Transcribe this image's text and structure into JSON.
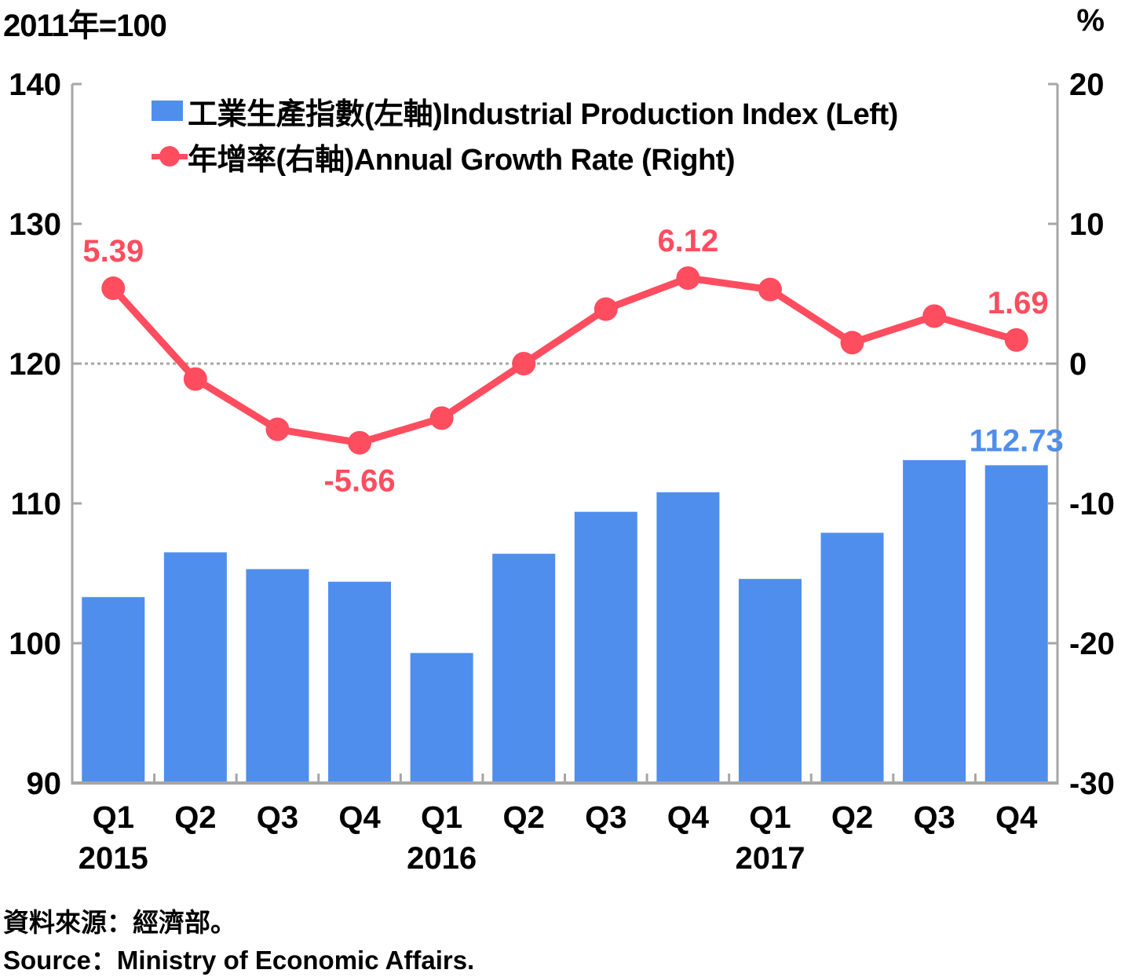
{
  "header": {
    "left_unit": "2011年=100",
    "right_unit": "%"
  },
  "legend": {
    "bar_label": "工業生產指數(左軸)Industrial Production Index (Left)",
    "line_label": "年增率(右軸)Annual Growth Rate (Right)"
  },
  "source": {
    "cn": "資料來源：經濟部。",
    "en": "Source：Ministry of Economic Affairs."
  },
  "colors": {
    "bar": "#4f8eec",
    "line": "#fe4d5f",
    "axis": "#a6a6a6",
    "text": "#000000"
  },
  "chart_data": {
    "type": "bar+line",
    "title": "",
    "categories": [
      "Q1",
      "Q2",
      "Q3",
      "Q4",
      "Q1",
      "Q2",
      "Q3",
      "Q4",
      "Q1",
      "Q2",
      "Q3",
      "Q4"
    ],
    "year_labels": [
      {
        "label": "2015",
        "category_index": 0
      },
      {
        "label": "2016",
        "category_index": 4
      },
      {
        "label": "2017",
        "category_index": 8
      }
    ],
    "series": [
      {
        "name": "工業生產指數(左軸)Industrial Production Index (Left)",
        "type": "bar",
        "axis": "left",
        "values": [
          103.3,
          106.5,
          105.3,
          104.4,
          99.3,
          106.4,
          109.4,
          110.8,
          104.6,
          107.9,
          113.1,
          112.73
        ]
      },
      {
        "name": "年增率(右軸)Annual Growth Rate (Right)",
        "type": "line",
        "axis": "right",
        "values": [
          5.39,
          -1.1,
          -4.7,
          -5.66,
          -3.9,
          0.0,
          3.9,
          6.12,
          5.3,
          1.5,
          3.4,
          1.69
        ]
      }
    ],
    "data_labels": [
      {
        "series": 1,
        "index": 0,
        "text": "5.39",
        "position": "above"
      },
      {
        "series": 1,
        "index": 3,
        "text": "-5.66",
        "position": "below"
      },
      {
        "series": 1,
        "index": 7,
        "text": "6.12",
        "position": "above"
      },
      {
        "series": 1,
        "index": 11,
        "text": "1.69",
        "position": "above"
      },
      {
        "series": 0,
        "index": 11,
        "text": "112.73",
        "position": "above"
      }
    ],
    "left_axis": {
      "label": "2011年=100",
      "min": 90,
      "max": 140,
      "ticks": [
        90,
        100,
        110,
        120,
        130,
        140
      ]
    },
    "right_axis": {
      "label": "%",
      "min": -30,
      "max": 20,
      "ticks": [
        -30,
        -20,
        -10,
        0,
        10,
        20
      ]
    },
    "reference_line": {
      "axis": "right",
      "value": 0,
      "style": "dotted"
    },
    "grid": false,
    "legend_position": "top-center"
  }
}
